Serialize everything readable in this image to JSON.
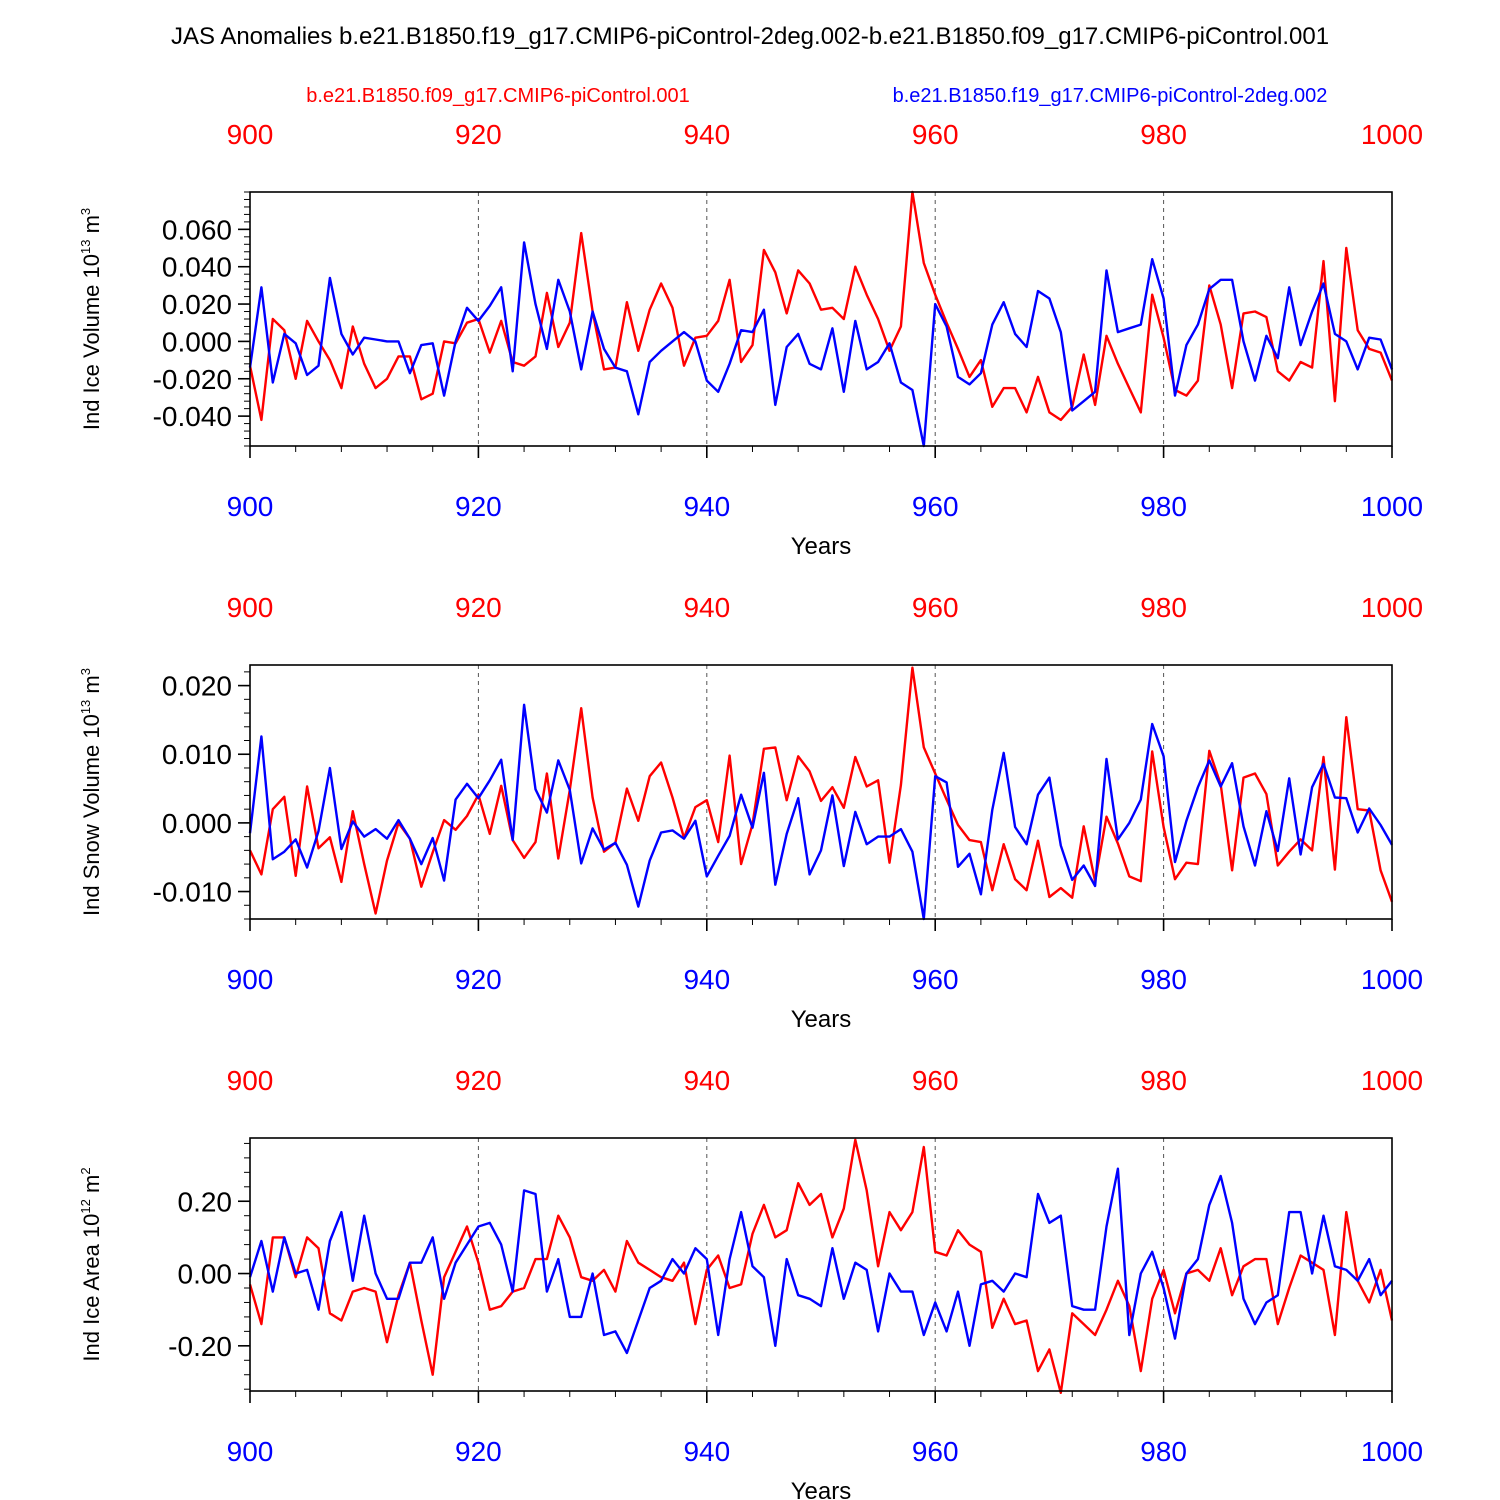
{
  "figure": {
    "title": "JAS Anomalies b.e21.B1850.f19_g17.CMIP6-piControl-2deg.002-b.e21.B1850.f09_g17.CMIP6-piControl.001",
    "legend": [
      {
        "name": "b.e21.B1850.f09_g17.CMIP6-piControl.001",
        "color": "#ff0000"
      },
      {
        "name": "b.e21.B1850.f19_g17.CMIP6-piControl-2deg.002",
        "color": "#0000ff"
      }
    ],
    "colors": {
      "red_series": "#ff0000",
      "blue_series": "#0000ff",
      "axis": "#000000"
    }
  },
  "chart_data": [
    {
      "type": "line",
      "title": "",
      "ylabel_main": "Ind Ice Volume 10",
      "ylabel_exp": "13",
      "ylabel_unit": "m",
      "ylabel_unit_exp": "3",
      "xlabel": "Years",
      "xlim": [
        900,
        1000
      ],
      "ylim": [
        -0.056,
        0.08
      ],
      "xticks": [
        900,
        920,
        940,
        960,
        980,
        1000
      ],
      "yticks": [
        -0.04,
        -0.02,
        0.0,
        0.02,
        0.04,
        0.06
      ],
      "ytick_labels": [
        "-0.040",
        "-0.020",
        "0.000",
        "0.020",
        "0.040",
        "0.060"
      ],
      "x_start": 900,
      "series": [
        {
          "name": "b.e21.B1850.f09_g17.CMIP6-piControl.001",
          "color": "#ff0000",
          "values": [
            -0.013,
            -0.042,
            0.012,
            0.006,
            -0.02,
            0.011,
            0.0,
            -0.01,
            -0.025,
            0.008,
            -0.012,
            -0.025,
            -0.02,
            -0.008,
            -0.008,
            -0.031,
            -0.028,
            0.0,
            -0.001,
            0.01,
            0.012,
            -0.006,
            0.011,
            -0.011,
            -0.013,
            -0.008,
            0.026,
            -0.003,
            0.01,
            0.058,
            0.016,
            -0.015,
            -0.014,
            0.021,
            -0.005,
            0.017,
            0.031,
            0.018,
            -0.013,
            0.002,
            0.003,
            0.011,
            0.033,
            -0.011,
            -0.002,
            0.049,
            0.037,
            0.015,
            0.038,
            0.031,
            0.017,
            0.018,
            0.012,
            0.04,
            0.025,
            0.012,
            -0.005,
            0.008,
            0.08,
            0.042,
            0.025,
            0.01,
            -0.004,
            -0.019,
            -0.01,
            -0.035,
            -0.025,
            -0.025,
            -0.038,
            -0.019,
            -0.038,
            -0.042,
            -0.035,
            -0.007,
            -0.034,
            0.003,
            -0.012,
            -0.025,
            -0.038,
            0.025,
            0.002,
            -0.026,
            -0.029,
            -0.021,
            0.03,
            0.009,
            -0.025,
            0.015,
            0.016,
            0.013,
            -0.016,
            -0.021,
            -0.011,
            -0.014,
            0.043,
            -0.032,
            0.05,
            0.006,
            -0.004,
            -0.006,
            -0.021
          ]
        },
        {
          "name": "b.e21.B1850.f19_g17.CMIP6-piControl-2deg.002",
          "color": "#0000ff",
          "values": [
            -0.014,
            0.029,
            -0.022,
            0.004,
            -0.001,
            -0.018,
            -0.013,
            0.034,
            0.004,
            -0.007,
            0.002,
            0.001,
            0.0,
            0.0,
            -0.017,
            -0.002,
            -0.001,
            -0.029,
            0.0,
            0.018,
            0.011,
            0.019,
            0.029,
            -0.016,
            0.053,
            0.02,
            -0.004,
            0.033,
            0.016,
            -0.015,
            0.016,
            -0.004,
            -0.014,
            -0.016,
            -0.039,
            -0.011,
            -0.005,
            0.0,
            0.005,
            0.0,
            -0.021,
            -0.027,
            -0.012,
            0.006,
            0.005,
            0.017,
            -0.034,
            -0.003,
            0.004,
            -0.012,
            -0.015,
            0.007,
            -0.027,
            0.011,
            -0.015,
            -0.011,
            -0.001,
            -0.022,
            -0.026,
            -0.056,
            0.02,
            0.008,
            -0.019,
            -0.023,
            -0.017,
            0.009,
            0.021,
            0.004,
            -0.003,
            0.027,
            0.023,
            0.005,
            -0.037,
            -0.032,
            -0.027,
            0.038,
            0.005,
            0.007,
            0.009,
            0.044,
            0.023,
            -0.029,
            -0.002,
            0.009,
            0.028,
            0.033,
            0.033,
            0.0,
            -0.021,
            0.003,
            -0.009,
            0.029,
            -0.002,
            0.016,
            0.031,
            0.004,
            0.0,
            -0.015,
            0.002,
            0.001,
            -0.015
          ]
        }
      ]
    },
    {
      "type": "line",
      "title": "",
      "ylabel_main": "Ind Snow Volume 10",
      "ylabel_exp": "13",
      "ylabel_unit": "m",
      "ylabel_unit_exp": "3",
      "xlabel": "Years",
      "xlim": [
        900,
        1000
      ],
      "ylim": [
        -0.014,
        0.023
      ],
      "xticks": [
        900,
        920,
        940,
        960,
        980,
        1000
      ],
      "yticks": [
        -0.01,
        0.0,
        0.01,
        0.02
      ],
      "ytick_labels": [
        "-0.010",
        "0.000",
        "0.010",
        "0.020"
      ],
      "x_start": 900,
      "series": [
        {
          "name": "b.e21.B1850.f09_g17.CMIP6-piControl.001",
          "color": "#ff0000",
          "values": [
            -0.004,
            -0.0075,
            0.002,
            0.0038,
            -0.0077,
            0.0053,
            -0.0037,
            -0.0021,
            -0.0086,
            0.0017,
            -0.006,
            -0.0132,
            -0.0055,
            0.0,
            -0.0023,
            -0.0093,
            -0.0043,
            0.0004,
            -0.001,
            0.001,
            0.0041,
            -0.0016,
            0.0054,
            -0.0025,
            -0.0051,
            -0.0028,
            0.0072,
            -0.0052,
            0.0048,
            0.0167,
            0.0037,
            -0.0042,
            -0.0029,
            0.005,
            0.0003,
            0.0068,
            0.0088,
            0.0037,
            -0.0022,
            0.0023,
            0.0033,
            -0.0028,
            0.0098,
            -0.006,
            -0.0002,
            0.0108,
            0.011,
            0.0033,
            0.0097,
            0.0075,
            0.0032,
            0.0052,
            0.0022,
            0.0096,
            0.0053,
            0.0062,
            -0.0058,
            0.0055,
            0.0226,
            0.011,
            0.0072,
            0.0034,
            -0.0003,
            -0.0025,
            -0.0028,
            -0.0098,
            -0.0031,
            -0.0082,
            -0.0098,
            -0.0026,
            -0.0108,
            -0.0095,
            -0.0109,
            -0.0005,
            -0.0085,
            0.0009,
            -0.003,
            -0.0078,
            -0.0085,
            0.0104,
            -0.0006,
            -0.0082,
            -0.0058,
            -0.006,
            0.0105,
            0.0056,
            -0.0069,
            0.0066,
            0.0072,
            0.0042,
            -0.0062,
            -0.0042,
            -0.0024,
            -0.004,
            0.0096,
            -0.0068,
            0.0154,
            0.002,
            0.0018,
            -0.0069,
            -0.0115
          ]
        },
        {
          "name": "b.e21.B1850.f19_g17.CMIP6-piControl-2deg.002",
          "color": "#0000ff",
          "values": [
            -0.0015,
            0.0126,
            -0.0053,
            -0.0042,
            -0.0024,
            -0.0065,
            -0.0012,
            0.008,
            -0.0038,
            0.0002,
            -0.002,
            -0.0009,
            -0.0023,
            0.0004,
            -0.0023,
            -0.006,
            -0.0022,
            -0.0084,
            0.0034,
            0.0057,
            0.0036,
            0.0062,
            0.0092,
            -0.0025,
            0.0172,
            0.0049,
            0.0015,
            0.0091,
            0.0048,
            -0.0059,
            -0.0008,
            -0.0039,
            -0.0029,
            -0.0061,
            -0.0122,
            -0.0055,
            -0.0014,
            -0.0011,
            -0.0023,
            0.0003,
            -0.0078,
            -0.0048,
            -0.0019,
            0.0041,
            -0.0007,
            0.0073,
            -0.009,
            -0.0016,
            0.0036,
            -0.0075,
            -0.004,
            0.004,
            -0.0063,
            0.0016,
            -0.0031,
            -0.002,
            -0.002,
            -0.0009,
            -0.0042,
            -0.014,
            0.0068,
            0.0059,
            -0.0064,
            -0.0045,
            -0.0104,
            0.0019,
            0.0102,
            -0.0006,
            -0.0031,
            0.0041,
            0.0066,
            -0.0033,
            -0.0083,
            -0.0062,
            -0.0092,
            0.0093,
            -0.0024,
            0.0,
            0.0034,
            0.0144,
            0.0097,
            -0.0057,
            0.0003,
            0.0052,
            0.0091,
            0.0053,
            0.0087,
            -0.0005,
            -0.0062,
            0.0017,
            -0.0041,
            0.0065,
            -0.0046,
            0.0052,
            0.0086,
            0.0037,
            0.0036,
            -0.0014,
            0.0021,
            -0.0003,
            -0.0032
          ]
        }
      ]
    },
    {
      "type": "line",
      "title": "",
      "ylabel_main": "Ind Ice Area 10",
      "ylabel_exp": "12",
      "ylabel_unit": "m",
      "ylabel_unit_exp": "2",
      "xlabel": "Years",
      "xlim": [
        900,
        1000
      ],
      "ylim": [
        -0.325,
        0.375
      ],
      "xticks": [
        900,
        920,
        940,
        960,
        980,
        1000
      ],
      "yticks": [
        -0.2,
        0.0,
        0.2
      ],
      "ytick_labels": [
        "-0.20",
        "0.00",
        "0.20"
      ],
      "x_start": 900,
      "series": [
        {
          "name": "b.e21.B1850.f09_g17.CMIP6-piControl.001",
          "color": "#ff0000",
          "values": [
            -0.03,
            -0.14,
            0.1,
            0.1,
            -0.01,
            0.1,
            0.07,
            -0.11,
            -0.13,
            -0.05,
            -0.04,
            -0.05,
            -0.19,
            -0.06,
            0.03,
            -0.13,
            -0.28,
            -0.01,
            0.06,
            0.13,
            0.03,
            -0.1,
            -0.09,
            -0.05,
            -0.04,
            0.04,
            0.04,
            0.16,
            0.1,
            -0.01,
            -0.02,
            0.01,
            -0.05,
            0.09,
            0.03,
            0.01,
            -0.01,
            -0.02,
            0.03,
            -0.14,
            0.01,
            0.05,
            -0.04,
            -0.03,
            0.11,
            0.19,
            0.1,
            0.12,
            0.25,
            0.19,
            0.22,
            0.1,
            0.18,
            0.37,
            0.23,
            0.02,
            0.17,
            0.12,
            0.17,
            0.35,
            0.06,
            0.05,
            0.12,
            0.08,
            0.06,
            -0.15,
            -0.07,
            -0.14,
            -0.13,
            -0.27,
            -0.21,
            -0.33,
            -0.11,
            -0.14,
            -0.17,
            -0.1,
            -0.02,
            -0.09,
            -0.27,
            -0.07,
            0.01,
            -0.11,
            0.0,
            0.01,
            -0.02,
            0.07,
            -0.06,
            0.02,
            0.04,
            0.04,
            -0.14,
            -0.04,
            0.05,
            0.03,
            0.01,
            -0.17,
            0.17,
            -0.02,
            -0.08,
            0.01,
            -0.13
          ]
        },
        {
          "name": "b.e21.B1850.f19_g17.CMIP6-piControl-2deg.002",
          "color": "#0000ff",
          "values": [
            -0.01,
            0.09,
            -0.05,
            0.1,
            0.0,
            0.01,
            -0.1,
            0.09,
            0.17,
            -0.02,
            0.16,
            0.0,
            -0.07,
            -0.07,
            0.03,
            0.03,
            0.1,
            -0.07,
            0.03,
            0.08,
            0.13,
            0.14,
            0.08,
            -0.05,
            0.23,
            0.22,
            -0.05,
            0.04,
            -0.12,
            -0.12,
            0.0,
            -0.17,
            -0.16,
            -0.22,
            -0.13,
            -0.04,
            -0.02,
            0.04,
            0.0,
            0.07,
            0.04,
            -0.17,
            0.04,
            0.17,
            0.02,
            -0.01,
            -0.2,
            0.04,
            -0.06,
            -0.07,
            -0.09,
            0.07,
            -0.07,
            0.03,
            0.01,
            -0.16,
            0.0,
            -0.05,
            -0.05,
            -0.17,
            -0.08,
            -0.16,
            -0.05,
            -0.2,
            -0.03,
            -0.02,
            -0.05,
            0.0,
            -0.01,
            0.22,
            0.14,
            0.16,
            -0.09,
            -0.1,
            -0.1,
            0.13,
            0.29,
            -0.17,
            0.0,
            0.06,
            -0.04,
            -0.18,
            0.0,
            0.04,
            0.19,
            0.27,
            0.14,
            -0.07,
            -0.14,
            -0.08,
            -0.06,
            0.17,
            0.17,
            0.0,
            0.16,
            0.02,
            0.01,
            -0.02,
            0.04,
            -0.06,
            -0.02
          ]
        }
      ]
    }
  ]
}
